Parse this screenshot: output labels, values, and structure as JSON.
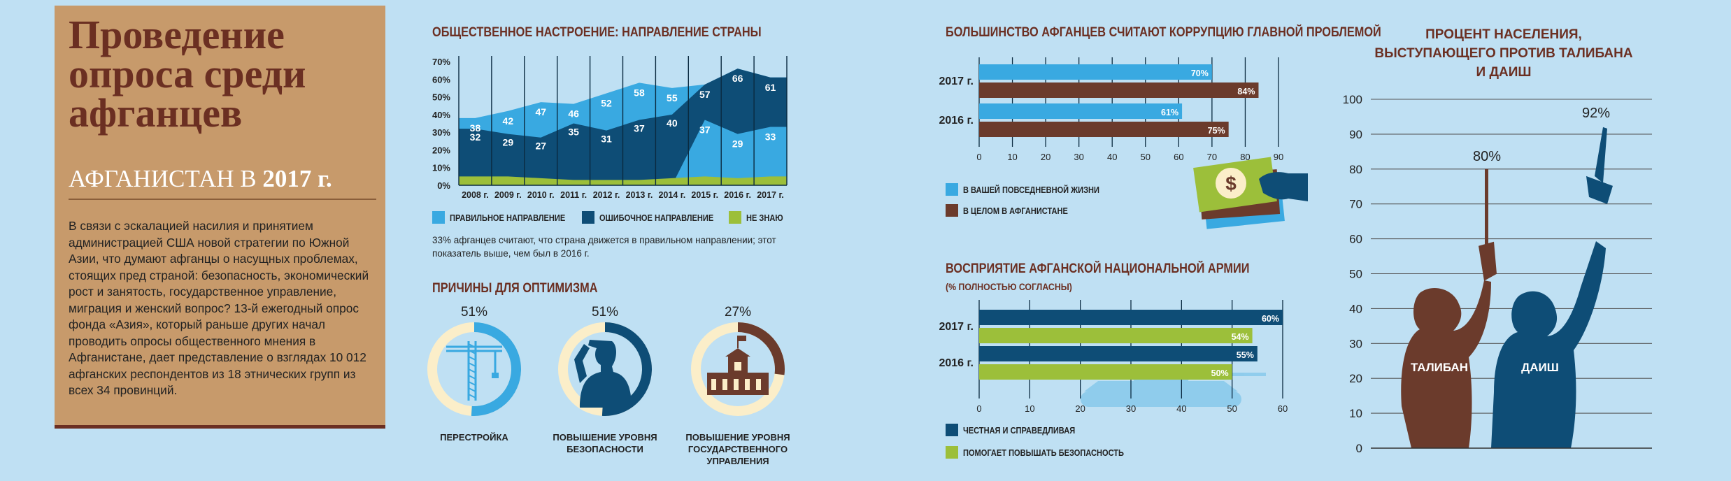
{
  "intro": {
    "title": "Проведение опроса среди афганцев",
    "subtitle_prefix": "АФГАНИСТАН В ",
    "subtitle_year": "2017 г.",
    "body": "В связи с эскалацией насилия и принятием администрацией США новой стратегии по Южной Азии, что думают афганцы о насущных проблемах, стоящих пред страной: безопасность, экономический рост и занятость, государственное управление, миграция и женский вопрос? 13-й ежегодный опрос фонда «Азия», который раньше других начал проводить опросы общественного мнения в Афганистане, дает представление о взглядах 10 012 афганских респондентов из 18 этнических групп из всех 34 провинций."
  },
  "colors": {
    "light_blue": "#39a9e1",
    "dark_blue": "#0e4d76",
    "green": "#9cbf3a",
    "brown": "#6b3b2c",
    "cream": "#fbeec9",
    "background": "#bfe0f3",
    "panel": "#c79a6b"
  },
  "chart_data": [
    {
      "id": "mood",
      "type": "area",
      "title": "ОБЩЕСТВЕННОЕ НАСТРОЕНИЕ: НАПРАВЛЕНИЕ СТРАНЫ",
      "categories": [
        "2008 г.",
        "2009 г.",
        "2010 г.",
        "2011 г.",
        "2012 г.",
        "2013 г.",
        "2014 г.",
        "2015 г.",
        "2016 г.",
        "2017 г."
      ],
      "series": [
        {
          "name": "ПРАВИЛЬНОЕ НАПРАВЛЕНИЕ",
          "color": "#39a9e1",
          "values": [
            38,
            42,
            47,
            46,
            52,
            58,
            55,
            37,
            29,
            33
          ]
        },
        {
          "name": "ОШИБОЧНОЕ НАПРАВЛЕНИЕ",
          "color": "#0e4d76",
          "values": [
            32,
            29,
            27,
            35,
            31,
            37,
            40,
            57,
            66,
            61
          ]
        },
        {
          "name": "НЕ ЗНАЮ",
          "color": "#9cbf3a",
          "values": [
            5,
            5,
            4,
            3,
            3,
            3,
            4,
            5,
            4,
            5
          ]
        }
      ],
      "ylim": [
        0,
        70
      ],
      "yticks": [
        "70%",
        "60%",
        "50%",
        "40%",
        "30%",
        "20%",
        "10%",
        "0%"
      ],
      "grid": true,
      "legend": "bottom",
      "note": "33% афганцев считают, что страна движется в правильном направлении; этот показатель выше, чем был в 2016 г."
    },
    {
      "id": "optimism",
      "type": "pie",
      "title": "ПРИЧИНЫ ДЛЯ ОПТИМИЗМА",
      "items": [
        {
          "label": "ПЕРЕСТРОЙКА",
          "value": 51,
          "value_label": "51%",
          "color": "#39a9e1",
          "icon": "construction-crane-icon"
        },
        {
          "label": "ПОВЫШЕНИЕ УРОВНЯ БЕЗОПАСНОСТИ",
          "value": 51,
          "value_label": "51%",
          "color": "#0e4d76",
          "icon": "saluting-soldier-icon"
        },
        {
          "label": "ПОВЫШЕНИЕ УРОВНЯ ГОСУДАРСТВЕННОГО УПРАВЛЕНИЯ",
          "value": 27,
          "value_label": "27%",
          "color": "#6b3b2c",
          "icon": "government-building-icon"
        }
      ]
    },
    {
      "id": "corruption",
      "type": "bar",
      "orientation": "horizontal",
      "title": "БОЛЬШИНСТВО АФГАНЦЕВ СЧИТАЮТ КОРРУПЦИЮ ГЛАВНОЙ ПРОБЛЕМОЙ",
      "categories": [
        "2017 г.",
        "2016 г."
      ],
      "series": [
        {
          "name": "В ВАШЕЙ ПОВСЕДНЕВНОЙ ЖИЗНИ",
          "color": "#39a9e1",
          "values": [
            70,
            61
          ],
          "labels": [
            "70%",
            "61%"
          ]
        },
        {
          "name": "В ЦЕЛОМ В АФГАНИСТАНЕ",
          "color": "#6b3b2c",
          "values": [
            84,
            75
          ],
          "labels": [
            "84%",
            "75%"
          ]
        }
      ],
      "xlim": [
        0,
        90
      ],
      "xticks": [
        "0",
        "10",
        "20",
        "30",
        "40",
        "50",
        "60",
        "70",
        "80",
        "90"
      ],
      "grid": true,
      "legend": "bottom-left",
      "icon": "money-bribe-icon"
    },
    {
      "id": "army",
      "type": "bar",
      "orientation": "horizontal",
      "title": "ВОСПРИЯТИЕ АФГАНСКОЙ НАЦИОНАЛЬНОЙ АРМИИ",
      "subtitle": "(% ПОЛНОСТЬЮ СОГЛАСНЫ)",
      "categories": [
        "2017 г.",
        "2016 г."
      ],
      "series": [
        {
          "name": "ЧЕСТНАЯ И СПРАВЕДЛИВАЯ",
          "color": "#0e4d76",
          "values": [
            60,
            55
          ],
          "labels": [
            "60%",
            "55%"
          ]
        },
        {
          "name": "ПОМОГАЕТ ПОВЫШАТЬ БЕЗОПАСНОСТЬ",
          "color": "#9cbf3a",
          "values": [
            54,
            50
          ],
          "labels": [
            "54%",
            "50%"
          ]
        }
      ],
      "xlim": [
        0,
        60
      ],
      "xticks": [
        "0",
        "10",
        "20",
        "30",
        "40",
        "50",
        "60"
      ],
      "grid": true,
      "legend": "bottom-left",
      "icon": "tank-icon"
    },
    {
      "id": "opposition",
      "type": "bar",
      "title": "ПРОЦЕНТ НАСЕЛЕНИЯ, ВЫСТУПАЮЩЕГО ПРОТИВ ТАЛИБАНА И ДАИШ",
      "categories": [
        "ТАЛИБАН",
        "ДАИШ"
      ],
      "values": [
        80,
        92
      ],
      "labels": [
        "80%",
        "92%"
      ],
      "colors": [
        "#6b3b2c",
        "#0e4d76"
      ],
      "ylim": [
        0,
        100
      ],
      "yticks": [
        "100",
        "90",
        "80",
        "70",
        "60",
        "50",
        "40",
        "30",
        "20",
        "10",
        "0"
      ],
      "grid": true,
      "icon": "fighter-with-rifle-icon"
    }
  ]
}
